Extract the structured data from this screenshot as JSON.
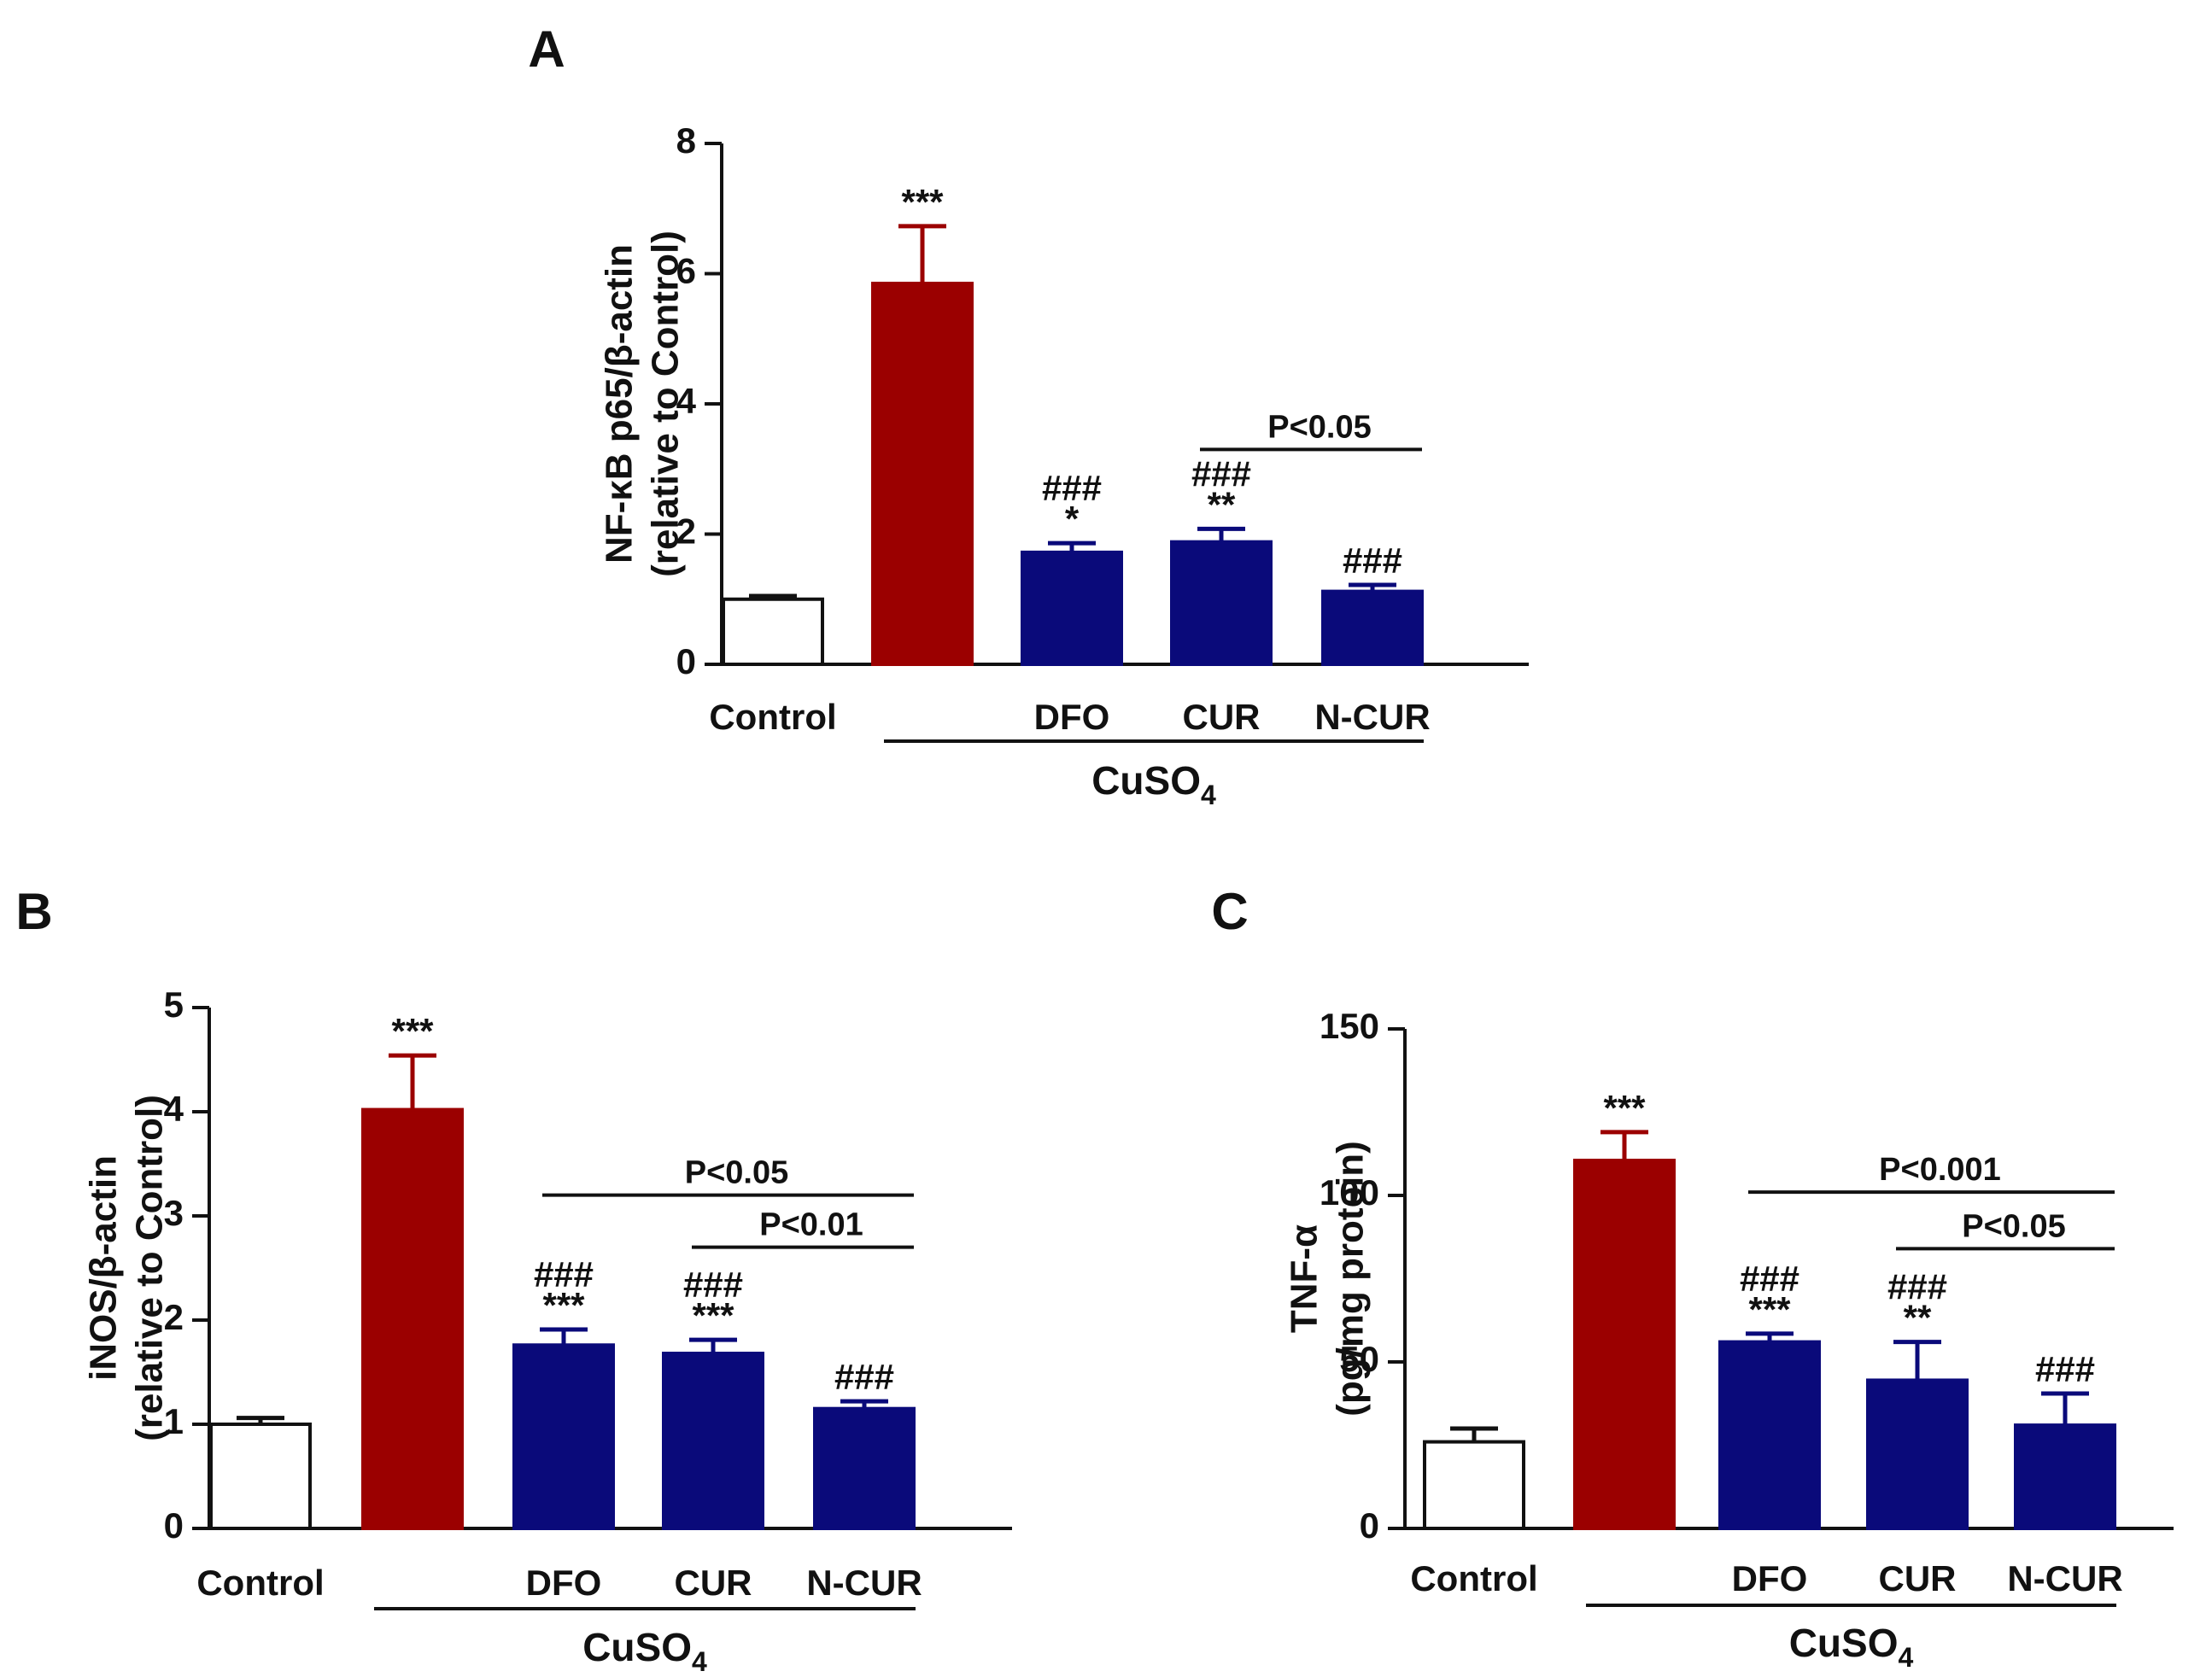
{
  "chart_data": [
    {
      "type": "bar",
      "panel": "A",
      "ylabel": "NF-κB p65/β-actin",
      "ylabel_sub": "(relative to Control)",
      "ylim": [
        0,
        8
      ],
      "yticks": [
        "0",
        "2",
        "4",
        "6",
        "8"
      ],
      "categories": [
        "Control",
        "",
        "DFO",
        "CUR",
        "N-CUR"
      ],
      "values": [
        1.0,
        5.85,
        1.72,
        1.88,
        1.12
      ],
      "errors": [
        0.05,
        0.88,
        0.14,
        0.2,
        0.1
      ],
      "bar_colors": [
        "#ffffff",
        "#9b0000",
        "#0a0a7a",
        "#0a0a7a",
        "#0a0a7a"
      ],
      "significance": [
        {
          "bar": 1,
          "lines": [
            "***"
          ]
        },
        {
          "bar": 2,
          "lines": [
            "###",
            "*"
          ]
        },
        {
          "bar": 3,
          "lines": [
            "###",
            "**"
          ]
        },
        {
          "bar": 4,
          "lines": [
            "###"
          ]
        }
      ],
      "comparisons": [
        {
          "from": 3,
          "to": 4,
          "y": 3.3,
          "label": "P<0.05"
        }
      ],
      "group": {
        "label": "CuSO",
        "sub": "4",
        "from": 1,
        "to": 4
      }
    },
    {
      "type": "bar",
      "panel": "B",
      "ylabel": "iNOS/β-actin",
      "ylabel_sub": "(relative to Control)",
      "ylim": [
        0,
        5
      ],
      "yticks": [
        "0",
        "1",
        "2",
        "3",
        "4",
        "5"
      ],
      "categories": [
        "Control",
        "",
        "DFO",
        "CUR",
        "N-CUR"
      ],
      "values": [
        1.0,
        4.02,
        1.76,
        1.68,
        1.15
      ],
      "errors": [
        0.06,
        0.52,
        0.15,
        0.13,
        0.07
      ],
      "bar_colors": [
        "#ffffff",
        "#9b0000",
        "#0a0a7a",
        "#0a0a7a",
        "#0a0a7a"
      ],
      "significance": [
        {
          "bar": 1,
          "lines": [
            "***"
          ]
        },
        {
          "bar": 2,
          "lines": [
            "###",
            "***"
          ]
        },
        {
          "bar": 3,
          "lines": [
            "###",
            "***"
          ]
        },
        {
          "bar": 4,
          "lines": [
            "###"
          ]
        }
      ],
      "comparisons": [
        {
          "from": 2,
          "to": 4,
          "y": 3.2,
          "label": "P<0.05"
        },
        {
          "from": 3,
          "to": 4,
          "y": 2.7,
          "label": "P<0.01"
        }
      ],
      "group": {
        "label": "CuSO",
        "sub": "4",
        "from": 1,
        "to": 4
      }
    },
    {
      "type": "bar",
      "panel": "C",
      "ylabel": "TNF-α",
      "ylabel_sub": "(pg/mg protein)",
      "ylim": [
        0,
        150
      ],
      "yticks": [
        "0",
        "50",
        "100",
        "150"
      ],
      "categories": [
        "Control",
        "",
        "DFO",
        "CUR",
        "N-CUR"
      ],
      "values": [
        26,
        110.5,
        56,
        44.5,
        31
      ],
      "errors": [
        4,
        8.5,
        2.5,
        11.5,
        9.5
      ],
      "bar_colors": [
        "#ffffff",
        "#9b0000",
        "#0a0a7a",
        "#0a0a7a",
        "#0a0a7a"
      ],
      "significance": [
        {
          "bar": 1,
          "lines": [
            "***"
          ]
        },
        {
          "bar": 2,
          "lines": [
            "###",
            "***"
          ]
        },
        {
          "bar": 3,
          "lines": [
            "###",
            "**"
          ]
        },
        {
          "bar": 4,
          "lines": [
            "###"
          ]
        }
      ],
      "comparisons": [
        {
          "from": 2,
          "to": 4,
          "y": 101,
          "label": "P<0.001"
        },
        {
          "from": 3,
          "to": 4,
          "y": 84,
          "label": "P<0.05"
        }
      ],
      "group": {
        "label": "CuSO",
        "sub": "4",
        "from": 1,
        "to": 4
      }
    }
  ]
}
